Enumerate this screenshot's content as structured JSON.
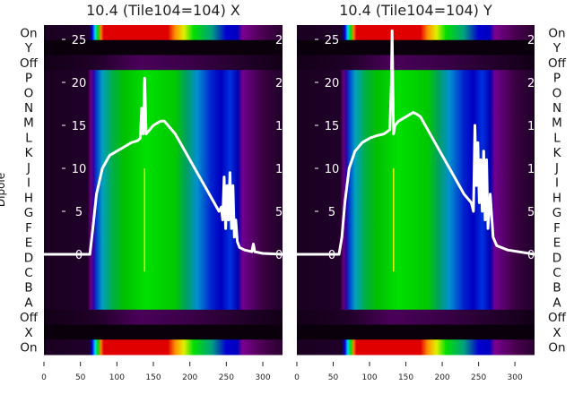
{
  "chart_data": [
    {
      "type": "heatmap",
      "title": "10.4 (Tile104=104) X",
      "ylabel": "Dipole",
      "row_labels": [
        "On",
        "Y",
        "Off",
        "P",
        "O",
        "N",
        "M",
        "L",
        "K",
        "J",
        "I",
        "H",
        "G",
        "F",
        "E",
        "D",
        "C",
        "B",
        "A",
        "Off",
        "X",
        "On"
      ],
      "xlim": [
        0,
        327
      ],
      "xticks": [
        0,
        50,
        100,
        150,
        200,
        250,
        300
      ],
      "inner_yticks": [
        0,
        5,
        10,
        15,
        20,
        25
      ],
      "inner_ylim": [
        -11.7,
        26.7
      ],
      "line": {
        "x": [
          0,
          63,
          67,
          72,
          80,
          90,
          100,
          110,
          120,
          128,
          132,
          134,
          136,
          138,
          140,
          145,
          150,
          160,
          165,
          170,
          180,
          190,
          200,
          210,
          220,
          230,
          240,
          243,
          245,
          247,
          249,
          251,
          253,
          255,
          257,
          259,
          261,
          263,
          265,
          268,
          275,
          285,
          287,
          289,
          300,
          327
        ],
        "y": [
          0,
          0,
          3,
          7,
          10,
          11.5,
          12,
          12.5,
          13,
          13.2,
          13.5,
          17,
          14,
          20.5,
          14,
          14.5,
          15,
          15.5,
          15.5,
          15,
          14,
          12.5,
          11,
          9.5,
          8,
          6.5,
          5,
          5.5,
          4,
          9,
          3,
          8,
          4,
          9.5,
          3,
          8,
          2,
          4,
          1.5,
          0.8,
          0.5,
          0.3,
          1.2,
          0.3,
          0.1,
          0
        ]
      }
    },
    {
      "type": "heatmap",
      "title": "10.4 (Tile104=104) Y",
      "row_labels": [
        "On",
        "Y",
        "Off",
        "P",
        "O",
        "N",
        "M",
        "L",
        "K",
        "J",
        "I",
        "H",
        "G",
        "F",
        "E",
        "D",
        "C",
        "B",
        "A",
        "Off",
        "X",
        "On"
      ],
      "xlim": [
        0,
        327
      ],
      "xticks": [
        0,
        50,
        100,
        150,
        200,
        250,
        300
      ],
      "inner_yticks": [
        0,
        5,
        10,
        15,
        20,
        25
      ],
      "inner_ylim": [
        -11.7,
        26.7
      ],
      "line": {
        "x": [
          0,
          58,
          62,
          66,
          72,
          80,
          90,
          100,
          110,
          120,
          128,
          130,
          131,
          133,
          135,
          140,
          150,
          160,
          165,
          170,
          180,
          190,
          200,
          210,
          220,
          230,
          240,
          243,
          245,
          247,
          249,
          251,
          253,
          255,
          257,
          259,
          261,
          263,
          266,
          270,
          275,
          290,
          327
        ],
        "y": [
          0,
          0,
          2,
          6,
          10,
          12,
          13,
          13.5,
          13.8,
          14,
          14.5,
          20,
          26,
          14,
          15,
          15.5,
          16,
          16.5,
          16.3,
          16,
          14.5,
          13,
          11.5,
          10,
          8.5,
          7,
          6,
          5,
          15,
          8,
          13,
          6,
          11,
          5,
          12,
          4,
          11,
          3,
          7,
          2,
          1,
          0.5,
          0
        ]
      }
    }
  ]
}
